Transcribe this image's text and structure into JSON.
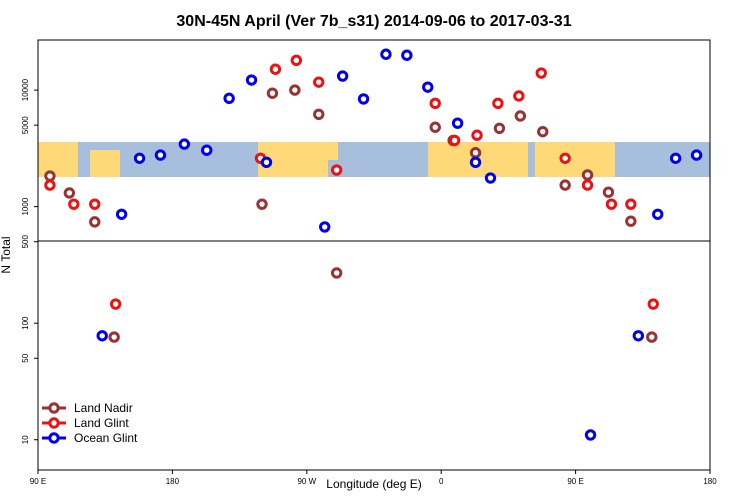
{
  "chart_data": {
    "type": "scatter",
    "title": "30N-45N April (Ver 7b_s31)   2014-09-06 to 2017-03-31",
    "xlabel": "Longitude (deg E)",
    "ylabel": "N Total",
    "xlim": [
      90,
      540
    ],
    "xticks": [
      {
        "value": 90,
        "label": "90 E"
      },
      180,
      {
        "value": 270,
        "label": "90 W"
      },
      {
        "value": 360,
        "label": "0"
      },
      {
        "value": 450,
        "label": "90 E"
      },
      {
        "value": 540,
        "label": "180"
      }
    ],
    "ylim": [
      5.5,
      26900
    ],
    "yticks": [
      10,
      50,
      100,
      500,
      1000,
      5000,
      10000
    ],
    "log_y": true,
    "legend": "bottom-left",
    "series": [
      {
        "name": "Land Nadir",
        "color": "#993333",
        "x": [
          98,
          111,
          128,
          141,
          240,
          247,
          262,
          278,
          290,
          356,
          368,
          383,
          399,
          413,
          428,
          443,
          458,
          472,
          487,
          501
        ],
        "values": [
          1830,
          1310,
          740,
          76,
          1050,
          9400,
          10000,
          6200,
          270,
          4800,
          3700,
          2900,
          4700,
          6000,
          4400,
          1530,
          1870,
          1330,
          750,
          76
        ]
      },
      {
        "name": "Land Glint",
        "color": "#ee1111",
        "x": [
          98,
          114,
          128,
          142,
          239,
          249,
          263,
          278,
          290,
          356,
          369,
          384,
          398,
          412,
          427,
          443,
          458,
          474,
          487,
          502
        ],
        "values": [
          1530,
          1050,
          1050,
          146,
          2600,
          15100,
          18000,
          11700,
          2060,
          7700,
          3700,
          4100,
          7700,
          8900,
          14000,
          2600,
          1530,
          1050,
          1050,
          146
        ]
      },
      {
        "name": "Ocean Glint",
        "color": "#0000ee",
        "x": [
          133,
          146,
          158,
          172,
          188,
          203,
          218,
          233,
          243,
          282,
          294,
          308,
          323,
          337,
          351,
          371,
          383,
          393,
          460,
          492,
          505,
          517,
          531
        ],
        "values": [
          78,
          860,
          2600,
          2770,
          3440,
          3050,
          8500,
          12200,
          2400,
          670,
          13200,
          8400,
          20300,
          19900,
          10600,
          5200,
          2400,
          1760,
          11,
          78,
          860,
          2600,
          2770
        ]
      }
    ]
  }
}
